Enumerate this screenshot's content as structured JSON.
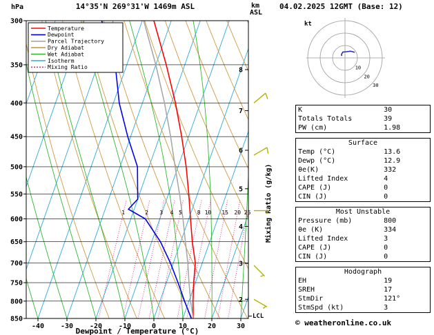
{
  "meta": {
    "title_left": "14°35'N 269°31'W 1469m ASL",
    "title_right": "04.02.2025 12GMT (Base: 12)",
    "pressure_unit": "hPa",
    "alt_unit_line1": "km",
    "alt_unit_line2": "ASL",
    "copyright": "© weatheronline.co.uk"
  },
  "chart_data": {
    "type": "line",
    "subtype": "skew-t-log-p-sounding",
    "xlabel": "Dewpoint / Temperature (°C)",
    "mixing_axis_label": "Mixing Ratio (g/kg)",
    "pressure_range": [
      300,
      850
    ],
    "temp_range": [
      -40,
      30
    ],
    "pressure_ticks": [
      300,
      350,
      400,
      450,
      500,
      550,
      600,
      650,
      700,
      750,
      800,
      850
    ],
    "temp_ticks": [
      -40,
      -30,
      -20,
      -10,
      0,
      10,
      20,
      30
    ],
    "km_ticks": [
      {
        "km": 2,
        "p": 795
      },
      {
        "km": 3,
        "p": 701
      },
      {
        "km": 4,
        "p": 616
      },
      {
        "km": 5,
        "p": 540
      },
      {
        "km": 6,
        "p": 472
      },
      {
        "km": 7,
        "p": 411
      },
      {
        "km": 8,
        "p": 356
      }
    ],
    "lcl": {
      "label": "LCL",
      "p": 843
    },
    "isotherm_step": 10,
    "dry_adiabat_thetas": [
      270,
      280,
      290,
      300,
      310,
      320,
      330,
      340,
      350,
      360,
      370,
      380
    ],
    "wet_adiabat_start_temps": [
      -40,
      -30,
      -20,
      -10,
      0,
      10,
      20,
      30,
      40,
      50,
      60
    ],
    "mixing_ratio_values": [
      1,
      2,
      3,
      4,
      5,
      8,
      10,
      15,
      20,
      25
    ],
    "series": [
      {
        "name": "Temperature",
        "color": "#ff0000",
        "points": [
          [
            850,
            13.6
          ],
          [
            800,
            11.4
          ],
          [
            750,
            9.4
          ],
          [
            700,
            7.6
          ],
          [
            650,
            4.0
          ],
          [
            600,
            0.6
          ],
          [
            550,
            -3.0
          ],
          [
            500,
            -7.2
          ],
          [
            450,
            -12.4
          ],
          [
            400,
            -18.6
          ],
          [
            350,
            -26.4
          ],
          [
            300,
            -36.0
          ]
        ]
      },
      {
        "name": "Dewpoint",
        "color": "#0000ee",
        "points": [
          [
            850,
            12.9
          ],
          [
            800,
            8.5
          ],
          [
            750,
            4.0
          ],
          [
            700,
            -1.0
          ],
          [
            650,
            -7.0
          ],
          [
            600,
            -15.0
          ],
          [
            580,
            -22.0
          ],
          [
            560,
            -20.0
          ],
          [
            500,
            -24.0
          ],
          [
            450,
            -31.0
          ],
          [
            400,
            -38.0
          ],
          [
            350,
            -44.0
          ],
          [
            300,
            -54.0
          ]
        ]
      },
      {
        "name": "Parcel Trajectory",
        "color": "#a8a8a8",
        "points": [
          [
            850,
            13.6
          ],
          [
            800,
            10.6
          ],
          [
            750,
            7.8
          ],
          [
            700,
            5.0
          ],
          [
            650,
            1.6
          ],
          [
            600,
            -2.0
          ],
          [
            550,
            -6.2
          ],
          [
            500,
            -11.0
          ],
          [
            450,
            -16.2
          ],
          [
            400,
            -22.4
          ],
          [
            350,
            -30.0
          ],
          [
            300,
            -39.5
          ]
        ]
      }
    ],
    "winds": [
      {
        "p": 400,
        "dir": 50,
        "spd": 10
      },
      {
        "p": 480,
        "dir": 60,
        "spd": 10
      },
      {
        "p": 583,
        "dir": 90,
        "spd": 5
      },
      {
        "p": 706,
        "dir": 135,
        "spd": 5
      },
      {
        "p": 795,
        "dir": 120,
        "spd": 5
      }
    ],
    "background_colors": {
      "dry_adiabat": "#d19a3f",
      "wet_adiabat": "#2eb82e",
      "isotherm": "#2aabdf",
      "mixing_ratio": "#dd2288",
      "pressure_line": "#000000",
      "wind_barb": "#b3b300"
    }
  },
  "legend": {
    "items": [
      {
        "label": "Temperature",
        "color": "#ff0000",
        "dash": ""
      },
      {
        "label": "Dewpoint",
        "color": "#0000ee",
        "dash": ""
      },
      {
        "label": "Parcel Trajectory",
        "color": "#a8a8a8",
        "dash": ""
      },
      {
        "label": "Dry Adiabat",
        "color": "#d19a3f",
        "dash": ""
      },
      {
        "label": "Wet Adiabat",
        "color": "#2eb82e",
        "dash": ""
      },
      {
        "label": "Isotherm",
        "color": "#2aabdf",
        "dash": ""
      },
      {
        "label": "Mixing Ratio",
        "color": "#dd2288",
        "dash": "2,2"
      }
    ]
  },
  "hodograph": {
    "unit_label": "kt",
    "rings": [
      10,
      20,
      30
    ],
    "ring_color": "#999999",
    "trace_color": "#2222cc",
    "trace": [
      [
        121,
        3
      ],
      [
        135,
        4
      ],
      [
        160,
        5
      ],
      [
        190,
        5
      ],
      [
        220,
        7
      ],
      [
        240,
        9
      ]
    ]
  },
  "stats": {
    "boxes": [
      {
        "title": "",
        "rows": [
          [
            "K",
            "30"
          ],
          [
            "Totals Totals",
            "39"
          ],
          [
            "PW (cm)",
            "1.98"
          ]
        ]
      },
      {
        "title": "Surface",
        "rows": [
          [
            "Temp (°C)",
            "13.6"
          ],
          [
            "Dewp (°C)",
            "12.9"
          ],
          [
            "θe(K)",
            "332"
          ],
          [
            "Lifted Index",
            "4"
          ],
          [
            "CAPE (J)",
            "0"
          ],
          [
            "CIN (J)",
            "0"
          ]
        ]
      },
      {
        "title": "Most Unstable",
        "rows": [
          [
            "Pressure (mb)",
            "800"
          ],
          [
            "θe (K)",
            "334"
          ],
          [
            "Lifted Index",
            "3"
          ],
          [
            "CAPE (J)",
            "0"
          ],
          [
            "CIN (J)",
            "0"
          ]
        ]
      },
      {
        "title": "Hodograph",
        "rows": [
          [
            "EH",
            "19"
          ],
          [
            "SREH",
            "17"
          ],
          [
            "StmDir",
            "121°"
          ],
          [
            "StmSpd (kt)",
            "3"
          ]
        ]
      }
    ]
  }
}
